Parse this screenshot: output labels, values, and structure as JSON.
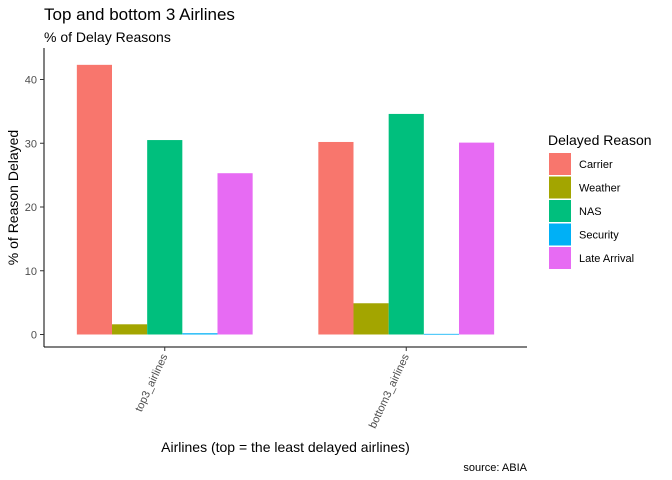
{
  "chart_data": {
    "type": "bar",
    "title": "Top and bottom 3 Airlines",
    "subtitle": "% of Delay Reasons",
    "xlabel": "Airlines (top = the least delayed airlines)",
    "ylabel": "% of Reason Delayed",
    "caption": "source: ABIA",
    "categories": [
      "top3_airlines",
      "bottom3_airlines"
    ],
    "ylim": [
      0,
      44
    ],
    "yticks": [
      0,
      10,
      20,
      30,
      40
    ],
    "legend_title": "Delayed Reason",
    "legend_position": "right",
    "grid": false,
    "series": [
      {
        "name": "Carrier",
        "color": "#F8766D",
        "values": [
          42.3,
          30.2
        ]
      },
      {
        "name": "Weather",
        "color": "#A3A500",
        "values": [
          1.6,
          4.9
        ]
      },
      {
        "name": "NAS",
        "color": "#00BF7D",
        "values": [
          30.5,
          34.6
        ]
      },
      {
        "name": "Security",
        "color": "#00B0F6",
        "values": [
          0.2,
          0.1
        ]
      },
      {
        "name": "Late Arrival",
        "color": "#E76BF3",
        "values": [
          25.3,
          30.1
        ]
      }
    ]
  }
}
